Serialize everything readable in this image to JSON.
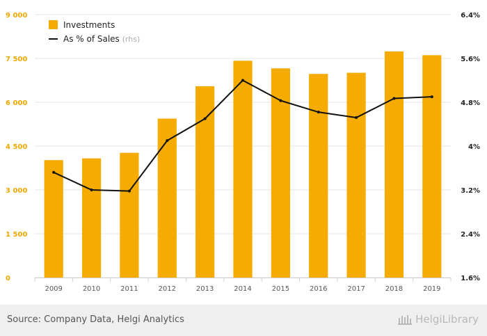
{
  "chart_data": {
    "type": "bar+line",
    "categories": [
      "2009",
      "2010",
      "2011",
      "2012",
      "2013",
      "2014",
      "2015",
      "2016",
      "2017",
      "2018",
      "2019"
    ],
    "series": [
      {
        "name": "Investments",
        "type": "bar",
        "axis": "left",
        "values": [
          4020,
          4080,
          4270,
          5440,
          6550,
          7420,
          7160,
          6970,
          7010,
          7740,
          7610
        ]
      },
      {
        "name": "As % of Sales",
        "legend_suffix": "(rhs)",
        "type": "line",
        "axis": "right",
        "values": [
          3.52,
          3.2,
          3.18,
          4.1,
          4.5,
          5.2,
          4.83,
          4.62,
          4.52,
          4.87,
          4.9
        ]
      }
    ],
    "y_left": {
      "range": [
        0,
        9000
      ],
      "ticks": [
        0,
        1500,
        3000,
        4500,
        6000,
        7500,
        9000
      ],
      "tick_labels": [
        "0",
        "1 500",
        "3 000",
        "4 500",
        "6 000",
        "7 500",
        "9 000"
      ]
    },
    "y_right": {
      "range": [
        1.6,
        6.4
      ],
      "ticks": [
        1.6,
        2.4,
        3.2,
        4.0,
        4.8,
        5.6,
        6.4
      ],
      "tick_labels": [
        "1.6%",
        "2.4%",
        "3.2%",
        "4%",
        "4.8%",
        "5.6%",
        "6.4%"
      ]
    },
    "grid": "horizontal",
    "legend_position": "top-left",
    "colors": {
      "bar": "#f5ab00",
      "line": "#111111",
      "left_axis_text": "#f0a800",
      "right_axis_text": "#222222",
      "grid": "#e6e6e6"
    }
  },
  "footer": {
    "source": "Source: Company Data, Helgi Analytics",
    "brand": "HelgiLibrary",
    "brand_icon": "library-building-icon"
  }
}
